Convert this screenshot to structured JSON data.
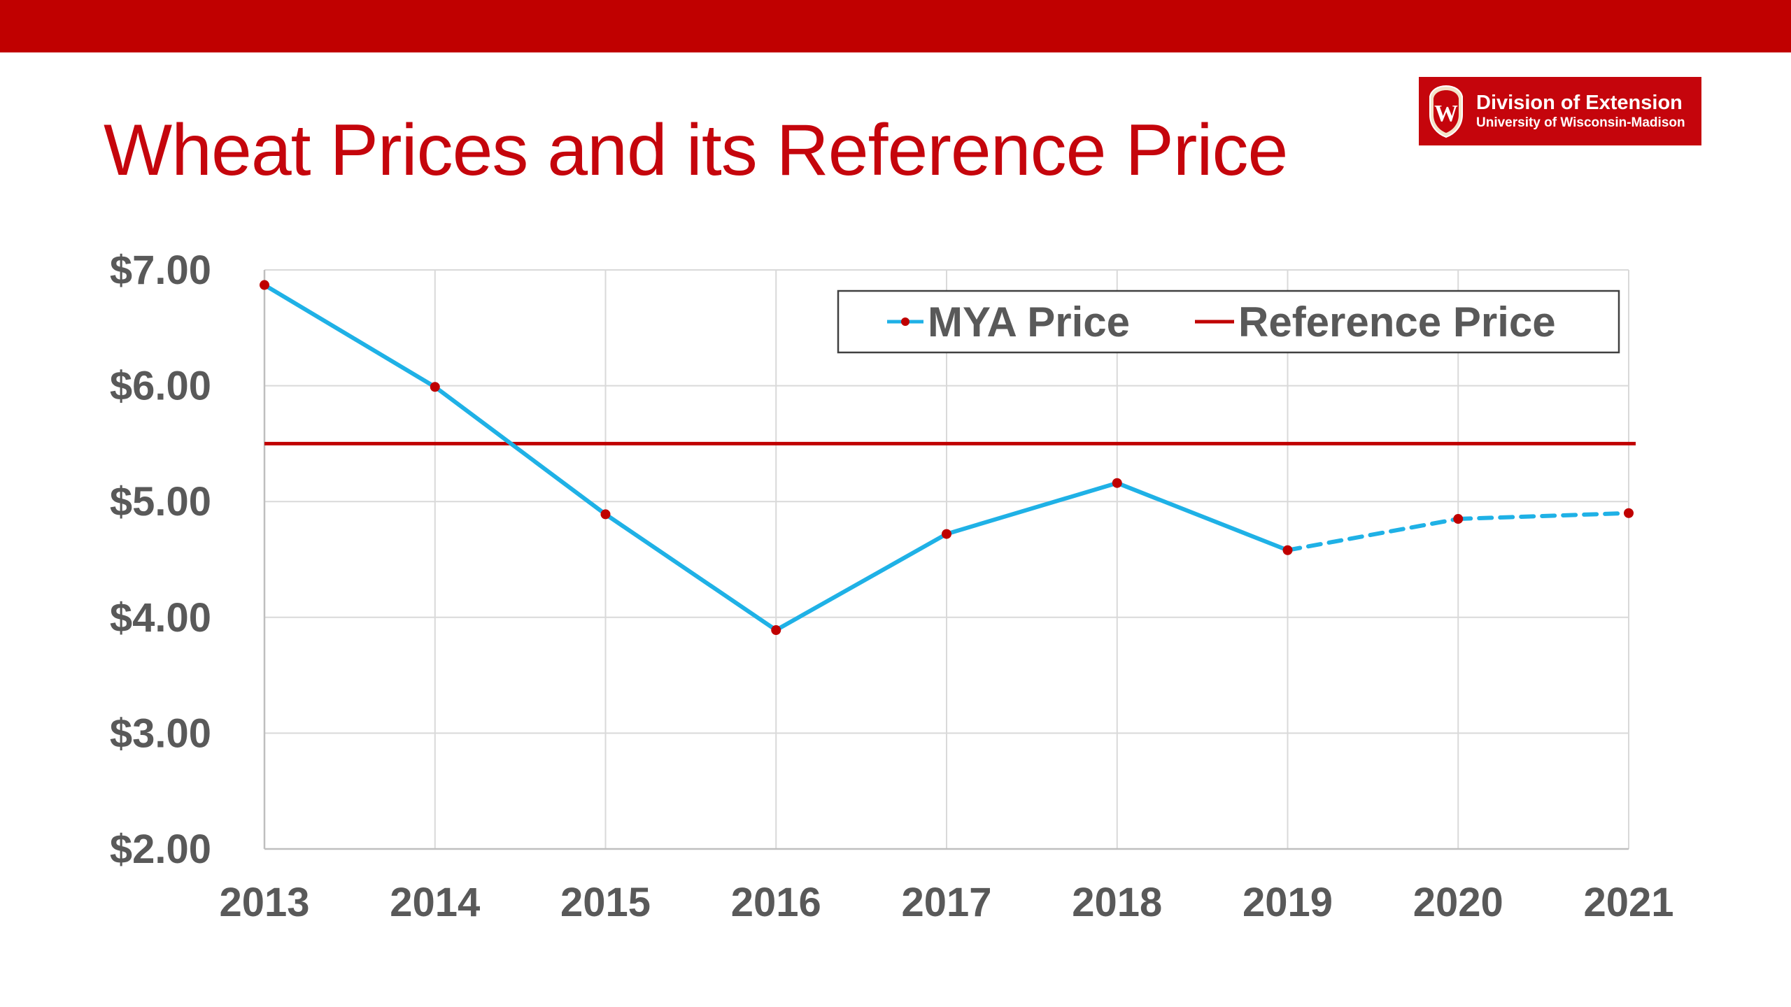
{
  "slide": {
    "title": "Wheat Prices and its Reference Price"
  },
  "logo": {
    "crest_letter": "W",
    "line1": "Division of Extension",
    "line2": "University of Wisconsin-Madison"
  },
  "colors": {
    "top_bar": "#c00000",
    "title": "#c5050c",
    "mya_line": "#1fb1e6",
    "mya_marker": "#c00000",
    "reference_line": "#c00000",
    "axis_text": "#595959",
    "grid": "#d9d9d9"
  },
  "chart_data": {
    "type": "line",
    "title": "",
    "xlabel": "",
    "ylabel": "",
    "x": [
      "2013",
      "2014",
      "2015",
      "2016",
      "2017",
      "2018",
      "2019",
      "2020",
      "2021"
    ],
    "ylim": [
      2.0,
      7.0
    ],
    "yticks": [
      7.0,
      6.0,
      5.0,
      4.0,
      3.0,
      2.0
    ],
    "ytick_labels": [
      "$7.00",
      "$6.00",
      "$5.00",
      "$4.00",
      "$3.00",
      "$2.00"
    ],
    "grid": true,
    "legend_position": "top-right",
    "series": [
      {
        "name": "MYA Price",
        "values": [
          6.87,
          5.99,
          4.89,
          3.89,
          4.72,
          5.16,
          4.58,
          4.85,
          4.9
        ],
        "projected_from": "2019",
        "color": "#1fb1e6",
        "marker_color": "#c00000"
      },
      {
        "name": "Reference Price",
        "values": [
          5.5,
          5.5,
          5.5,
          5.5,
          5.5,
          5.5,
          5.5,
          5.5,
          5.5
        ],
        "color": "#c00000"
      }
    ]
  }
}
